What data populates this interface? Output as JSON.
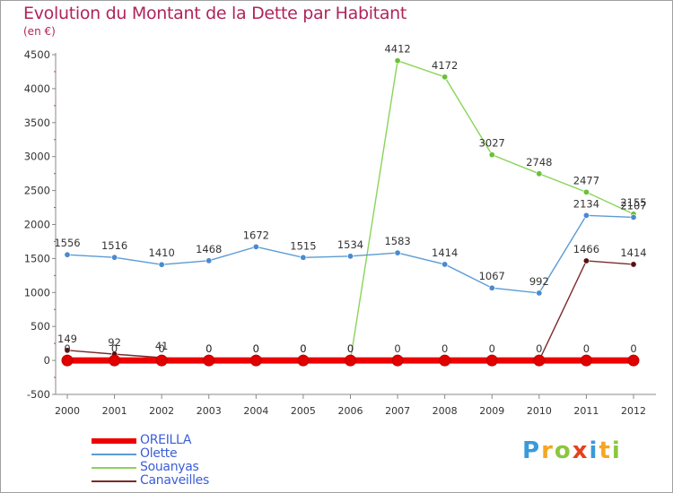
{
  "title": "Evolution du Montant de la Dette par Habitant",
  "subtitle": "(en €)",
  "brand": {
    "letters": [
      {
        "char": "P",
        "color": "#3a9ad9"
      },
      {
        "char": "r",
        "color": "#f5a623"
      },
      {
        "char": "o",
        "color": "#8cc63f"
      },
      {
        "char": "x",
        "color": "#e8401c"
      },
      {
        "char": "i",
        "color": "#3a9ad9"
      },
      {
        "char": "t",
        "color": "#f5a623"
      },
      {
        "char": "i",
        "color": "#8cc63f"
      }
    ]
  },
  "chart_data": {
    "type": "line",
    "title": "Evolution du Montant de la Dette par Habitant",
    "subtitle": "(en €)",
    "x": [
      "2000",
      "2001",
      "2002",
      "2003",
      "2004",
      "2005",
      "2006",
      "2007",
      "2008",
      "2009",
      "2010",
      "2011",
      "2012"
    ],
    "ylim": [
      -500,
      4500
    ],
    "yticks": [
      -500,
      0,
      500,
      1000,
      1500,
      2000,
      2500,
      3000,
      3500,
      4000,
      4500
    ],
    "grid": false,
    "legend_position": "bottom-left",
    "series": [
      {
        "name": "OREILLA",
        "color": "#ee0000",
        "marker_color": "#e00000",
        "values": [
          0,
          0,
          0,
          0,
          0,
          0,
          0,
          0,
          0,
          0,
          0,
          0,
          0
        ],
        "labels": [
          "",
          "",
          "",
          "",
          "",
          "",
          "",
          "",
          "",
          "",
          "",
          "0",
          "0"
        ]
      },
      {
        "name": "Olette",
        "color": "#5b9bd5",
        "marker_color": "#4a8ad0",
        "values": [
          1556,
          1516,
          1410,
          1468,
          1672,
          1515,
          1534,
          1583,
          1414,
          1067,
          992,
          2134,
          2107
        ],
        "labels": [
          "1556",
          "1516",
          "1410",
          "1468",
          "1672",
          "1515",
          "1534",
          "1583",
          "1414",
          "1067",
          "992",
          "2134",
          "2107"
        ]
      },
      {
        "name": "Souanyas",
        "color": "#8ad45a",
        "marker_color": "#6cbf3a",
        "values": [
          0,
          0,
          0,
          0,
          0,
          0,
          0,
          4412,
          4172,
          3027,
          2748,
          2477,
          2155
        ],
        "labels": [
          "0",
          "0",
          "0",
          "0",
          "0",
          "0",
          "0",
          "4412",
          "4172",
          "3027",
          "2748",
          "2477",
          "2155"
        ]
      },
      {
        "name": "Canaveilles",
        "color": "#7a2a2a",
        "marker_color": "#5a1010",
        "values": [
          149,
          92,
          41,
          0,
          0,
          0,
          0,
          0,
          0,
          0,
          0,
          1466,
          1414
        ],
        "labels": [
          "149",
          "92",
          "41",
          "0",
          "0",
          "0",
          "0",
          "0",
          "0",
          "0",
          "0",
          "1466",
          "1414"
        ]
      }
    ]
  }
}
